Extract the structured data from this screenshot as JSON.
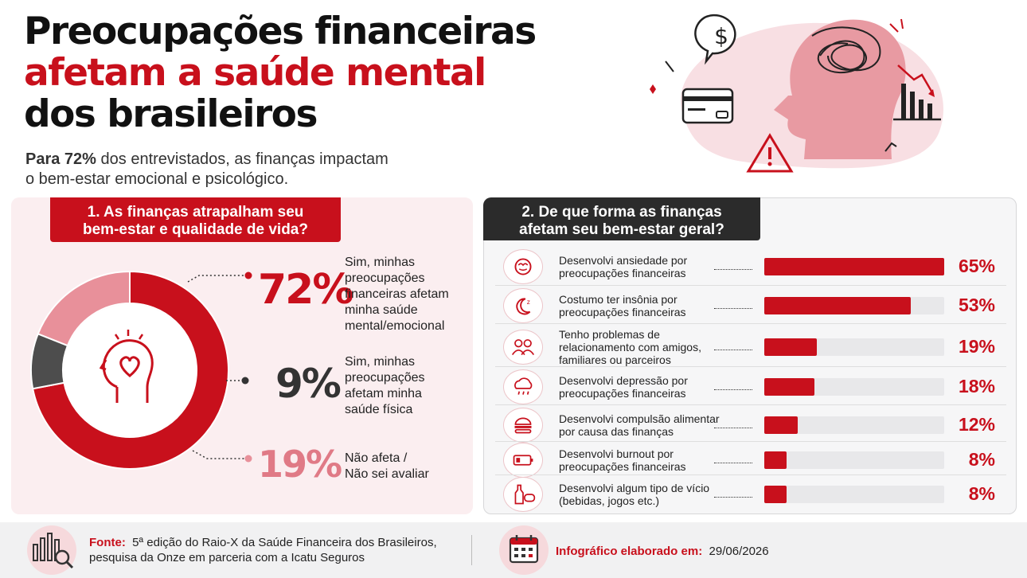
{
  "header": {
    "title_line1": "Preocupações financeiras",
    "title_line2": "afetam a saúde mental",
    "title_line3": "dos brasileiros",
    "subtitle_bold": "Para 72%",
    "subtitle_line1_rest": " dos entrevistados, as finanças impactam",
    "subtitle_line2": "o bem-estar emocional e psicológico."
  },
  "colors": {
    "red": "#c8101c",
    "dark_gray": "#4d4d4d",
    "pink": "#e8909a",
    "panel1_bg": "#fbeef0",
    "track": "#e8e8ea"
  },
  "icons": {
    "header": [
      "dollar-speech-bubble-icon",
      "credit-card-icon",
      "warning-triangle-icon",
      "head-tangled-mind-icon",
      "declining-bar-chart-icon"
    ],
    "donut_center": "head-heart-icon",
    "rows": [
      "anxious-brain-icon",
      "moon-sleep-icon",
      "people-group-icon",
      "rain-cloud-icon",
      "burger-icon",
      "low-battery-icon",
      "bottle-gamepad-icon"
    ],
    "footer": [
      "chart-magnifier-icon",
      "calendar-icon"
    ]
  },
  "panel1": {
    "title_line1": "1. As finanças atrapalham seu",
    "title_line2": "bem-estar e qualidade de vida?"
  },
  "panel2": {
    "title_line1": "2. De que forma as finanças",
    "title_line2": "afetam seu bem-estar geral?"
  },
  "chart_data": [
    {
      "type": "pie",
      "title": "1. As finanças atrapalham seu bem-estar e qualidade de vida?",
      "donut": true,
      "unit": "%",
      "slices": [
        {
          "value": 72,
          "value_label": "72%",
          "label_lines": [
            "Sim, minhas",
            "preocupações",
            "financeiras afetam",
            "minha saúde",
            "mental/emocional"
          ],
          "color": "#c8101c"
        },
        {
          "value": 9,
          "value_label": "9%",
          "label_lines": [
            "Sim, minhas",
            "preocupações",
            "afetam minha",
            "saúde física"
          ],
          "color": "#4d4d4d"
        },
        {
          "value": 19,
          "value_label": "19%",
          "label_lines": [
            "Não afeta /",
            "Não sei avaliar"
          ],
          "color": "#e8909a"
        }
      ]
    },
    {
      "type": "bar",
      "orientation": "horizontal",
      "title": "2. De que forma as finanças afetam seu bem-estar geral?",
      "unit": "%",
      "xlim": [
        0,
        65
      ],
      "bar_color": "#c8101c",
      "rows": [
        {
          "label_lines": [
            "Desenvolvi ansiedade por",
            "preocupações financeiras"
          ],
          "value": 65,
          "value_label": "65%"
        },
        {
          "label_lines": [
            "Costumo ter insônia por",
            "preocupações financeiras"
          ],
          "value": 53,
          "value_label": "53%"
        },
        {
          "label_lines": [
            "Tenho problemas de",
            "relacionamento com amigos,",
            "familiares ou parceiros"
          ],
          "value": 19,
          "value_label": "19%"
        },
        {
          "label_lines": [
            "Desenvolvi depressão por",
            "preocupações financeiras"
          ],
          "value": 18,
          "value_label": "18%"
        },
        {
          "label_lines": [
            "Desenvolvi compulsão alimentar",
            "por causa das finanças"
          ],
          "value": 12,
          "value_label": "12%"
        },
        {
          "label_lines": [
            "Desenvolvi burnout por",
            "preocupações financeiras"
          ],
          "value": 8,
          "value_label": "8%"
        },
        {
          "label_lines": [
            "Desenvolvi algum tipo de vício",
            "(bebidas, jogos etc.)"
          ],
          "value": 8,
          "value_label": "8%"
        }
      ]
    }
  ],
  "footer": {
    "source_label": "Fonte:",
    "source_line1": "5ª edição do Raio-X da Saúde Financeira dos Brasileiros,",
    "source_line2": "pesquisa da Onze em parceria com a Icatu Seguros",
    "date_label": "Infográfico elaborado em:",
    "date_value": "29/06/2026"
  }
}
